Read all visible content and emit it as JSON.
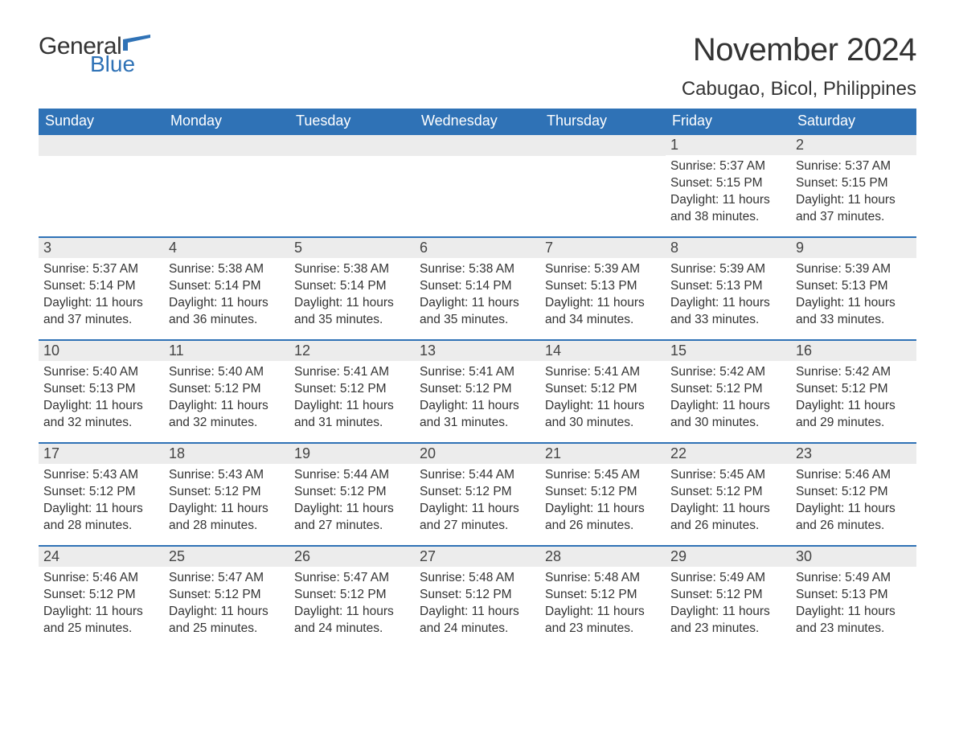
{
  "logo": {
    "general": "General",
    "blue": "Blue"
  },
  "header": {
    "month_title": "November 2024",
    "location": "Cabugao, Bicol, Philippines"
  },
  "colors": {
    "brand_blue": "#2f72b6",
    "header_stripe_bg": "#ececec",
    "text": "#333333",
    "page_bg": "#ffffff"
  },
  "day_headers": [
    "Sunday",
    "Monday",
    "Tuesday",
    "Wednesday",
    "Thursday",
    "Friday",
    "Saturday"
  ],
  "weeks": [
    [
      {
        "empty": true
      },
      {
        "empty": true
      },
      {
        "empty": true
      },
      {
        "empty": true
      },
      {
        "empty": true
      },
      {
        "day": "1",
        "sunrise": "Sunrise: 5:37 AM",
        "sunset": "Sunset: 5:15 PM",
        "daylight1": "Daylight: 11 hours",
        "daylight2": "and 38 minutes."
      },
      {
        "day": "2",
        "sunrise": "Sunrise: 5:37 AM",
        "sunset": "Sunset: 5:15 PM",
        "daylight1": "Daylight: 11 hours",
        "daylight2": "and 37 minutes."
      }
    ],
    [
      {
        "day": "3",
        "sunrise": "Sunrise: 5:37 AM",
        "sunset": "Sunset: 5:14 PM",
        "daylight1": "Daylight: 11 hours",
        "daylight2": "and 37 minutes."
      },
      {
        "day": "4",
        "sunrise": "Sunrise: 5:38 AM",
        "sunset": "Sunset: 5:14 PM",
        "daylight1": "Daylight: 11 hours",
        "daylight2": "and 36 minutes."
      },
      {
        "day": "5",
        "sunrise": "Sunrise: 5:38 AM",
        "sunset": "Sunset: 5:14 PM",
        "daylight1": "Daylight: 11 hours",
        "daylight2": "and 35 minutes."
      },
      {
        "day": "6",
        "sunrise": "Sunrise: 5:38 AM",
        "sunset": "Sunset: 5:14 PM",
        "daylight1": "Daylight: 11 hours",
        "daylight2": "and 35 minutes."
      },
      {
        "day": "7",
        "sunrise": "Sunrise: 5:39 AM",
        "sunset": "Sunset: 5:13 PM",
        "daylight1": "Daylight: 11 hours",
        "daylight2": "and 34 minutes."
      },
      {
        "day": "8",
        "sunrise": "Sunrise: 5:39 AM",
        "sunset": "Sunset: 5:13 PM",
        "daylight1": "Daylight: 11 hours",
        "daylight2": "and 33 minutes."
      },
      {
        "day": "9",
        "sunrise": "Sunrise: 5:39 AM",
        "sunset": "Sunset: 5:13 PM",
        "daylight1": "Daylight: 11 hours",
        "daylight2": "and 33 minutes."
      }
    ],
    [
      {
        "day": "10",
        "sunrise": "Sunrise: 5:40 AM",
        "sunset": "Sunset: 5:13 PM",
        "daylight1": "Daylight: 11 hours",
        "daylight2": "and 32 minutes."
      },
      {
        "day": "11",
        "sunrise": "Sunrise: 5:40 AM",
        "sunset": "Sunset: 5:12 PM",
        "daylight1": "Daylight: 11 hours",
        "daylight2": "and 32 minutes."
      },
      {
        "day": "12",
        "sunrise": "Sunrise: 5:41 AM",
        "sunset": "Sunset: 5:12 PM",
        "daylight1": "Daylight: 11 hours",
        "daylight2": "and 31 minutes."
      },
      {
        "day": "13",
        "sunrise": "Sunrise: 5:41 AM",
        "sunset": "Sunset: 5:12 PM",
        "daylight1": "Daylight: 11 hours",
        "daylight2": "and 31 minutes."
      },
      {
        "day": "14",
        "sunrise": "Sunrise: 5:41 AM",
        "sunset": "Sunset: 5:12 PM",
        "daylight1": "Daylight: 11 hours",
        "daylight2": "and 30 minutes."
      },
      {
        "day": "15",
        "sunrise": "Sunrise: 5:42 AM",
        "sunset": "Sunset: 5:12 PM",
        "daylight1": "Daylight: 11 hours",
        "daylight2": "and 30 minutes."
      },
      {
        "day": "16",
        "sunrise": "Sunrise: 5:42 AM",
        "sunset": "Sunset: 5:12 PM",
        "daylight1": "Daylight: 11 hours",
        "daylight2": "and 29 minutes."
      }
    ],
    [
      {
        "day": "17",
        "sunrise": "Sunrise: 5:43 AM",
        "sunset": "Sunset: 5:12 PM",
        "daylight1": "Daylight: 11 hours",
        "daylight2": "and 28 minutes."
      },
      {
        "day": "18",
        "sunrise": "Sunrise: 5:43 AM",
        "sunset": "Sunset: 5:12 PM",
        "daylight1": "Daylight: 11 hours",
        "daylight2": "and 28 minutes."
      },
      {
        "day": "19",
        "sunrise": "Sunrise: 5:44 AM",
        "sunset": "Sunset: 5:12 PM",
        "daylight1": "Daylight: 11 hours",
        "daylight2": "and 27 minutes."
      },
      {
        "day": "20",
        "sunrise": "Sunrise: 5:44 AM",
        "sunset": "Sunset: 5:12 PM",
        "daylight1": "Daylight: 11 hours",
        "daylight2": "and 27 minutes."
      },
      {
        "day": "21",
        "sunrise": "Sunrise: 5:45 AM",
        "sunset": "Sunset: 5:12 PM",
        "daylight1": "Daylight: 11 hours",
        "daylight2": "and 26 minutes."
      },
      {
        "day": "22",
        "sunrise": "Sunrise: 5:45 AM",
        "sunset": "Sunset: 5:12 PM",
        "daylight1": "Daylight: 11 hours",
        "daylight2": "and 26 minutes."
      },
      {
        "day": "23",
        "sunrise": "Sunrise: 5:46 AM",
        "sunset": "Sunset: 5:12 PM",
        "daylight1": "Daylight: 11 hours",
        "daylight2": "and 26 minutes."
      }
    ],
    [
      {
        "day": "24",
        "sunrise": "Sunrise: 5:46 AM",
        "sunset": "Sunset: 5:12 PM",
        "daylight1": "Daylight: 11 hours",
        "daylight2": "and 25 minutes."
      },
      {
        "day": "25",
        "sunrise": "Sunrise: 5:47 AM",
        "sunset": "Sunset: 5:12 PM",
        "daylight1": "Daylight: 11 hours",
        "daylight2": "and 25 minutes."
      },
      {
        "day": "26",
        "sunrise": "Sunrise: 5:47 AM",
        "sunset": "Sunset: 5:12 PM",
        "daylight1": "Daylight: 11 hours",
        "daylight2": "and 24 minutes."
      },
      {
        "day": "27",
        "sunrise": "Sunrise: 5:48 AM",
        "sunset": "Sunset: 5:12 PM",
        "daylight1": "Daylight: 11 hours",
        "daylight2": "and 24 minutes."
      },
      {
        "day": "28",
        "sunrise": "Sunrise: 5:48 AM",
        "sunset": "Sunset: 5:12 PM",
        "daylight1": "Daylight: 11 hours",
        "daylight2": "and 23 minutes."
      },
      {
        "day": "29",
        "sunrise": "Sunrise: 5:49 AM",
        "sunset": "Sunset: 5:12 PM",
        "daylight1": "Daylight: 11 hours",
        "daylight2": "and 23 minutes."
      },
      {
        "day": "30",
        "sunrise": "Sunrise: 5:49 AM",
        "sunset": "Sunset: 5:13 PM",
        "daylight1": "Daylight: 11 hours",
        "daylight2": "and 23 minutes."
      }
    ]
  ]
}
